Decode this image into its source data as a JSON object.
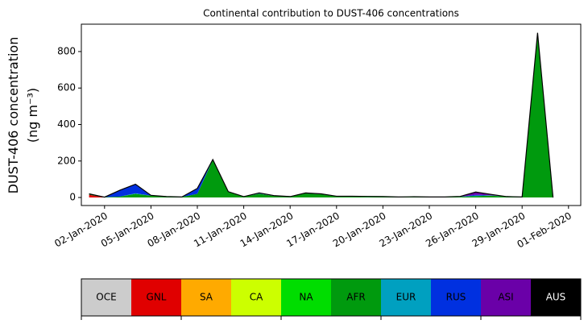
{
  "chart_data": {
    "type": "stacked-area",
    "title": "Continental contribution to DUST-406 concentrations",
    "y_label": "DUST-406 concentration",
    "y_label_units": "(ng m⁻³)",
    "x": [
      "2020-01-01",
      "2020-01-02",
      "2020-01-03",
      "2020-01-04",
      "2020-01-05",
      "2020-01-06",
      "2020-01-07",
      "2020-01-08",
      "2020-01-09",
      "2020-01-10",
      "2020-01-11",
      "2020-01-12",
      "2020-01-13",
      "2020-01-14",
      "2020-01-15",
      "2020-01-16",
      "2020-01-17",
      "2020-01-18",
      "2020-01-19",
      "2020-01-20",
      "2020-01-21",
      "2020-01-22",
      "2020-01-23",
      "2020-01-24",
      "2020-01-25",
      "2020-01-26",
      "2020-01-27",
      "2020-01-28",
      "2020-01-29",
      "2020-01-30",
      "2020-01-31"
    ],
    "series": [
      {
        "name": "OCE",
        "color": "#cccccc",
        "values": [
          0,
          0,
          0,
          0,
          0,
          0,
          0,
          0,
          0,
          0,
          0,
          0,
          0,
          0,
          0,
          0,
          0,
          0,
          0,
          0,
          0,
          0,
          0,
          0,
          0,
          0,
          0,
          0,
          0,
          0,
          0
        ]
      },
      {
        "name": "GNL",
        "color": "#e00000",
        "values": [
          15,
          0,
          0,
          0,
          0,
          0,
          0,
          0,
          0,
          0,
          0,
          0,
          0,
          0,
          0,
          0,
          0,
          0,
          0,
          0,
          0,
          0,
          0,
          0,
          0,
          0,
          0,
          0,
          0,
          0,
          0
        ]
      },
      {
        "name": "SA",
        "color": "#ffaa00",
        "values": [
          0,
          0,
          0,
          0,
          0,
          0,
          0,
          0,
          0,
          0,
          0,
          0,
          0,
          0,
          0,
          0,
          0,
          0,
          0,
          0,
          0,
          0,
          0,
          0,
          0,
          0,
          0,
          0,
          0,
          0,
          0
        ]
      },
      {
        "name": "CA",
        "color": "#ccff00",
        "values": [
          0,
          0,
          0,
          0,
          0,
          0,
          0,
          0,
          0,
          0,
          0,
          0,
          0,
          0,
          0,
          0,
          0,
          0,
          0,
          0,
          0,
          0,
          0,
          0,
          0,
          0,
          0,
          0,
          0,
          0,
          0
        ]
      },
      {
        "name": "NA",
        "color": "#00dd00",
        "values": [
          0,
          0,
          0,
          0,
          0,
          0,
          0,
          0,
          0,
          0,
          0,
          0,
          0,
          0,
          0,
          0,
          0,
          0,
          0,
          0,
          0,
          0,
          0,
          0,
          0,
          0,
          0,
          0,
          0,
          0,
          0
        ]
      },
      {
        "name": "AFR",
        "color": "#009a0e",
        "values": [
          5,
          2,
          5,
          20,
          10,
          5,
          3,
          20,
          205,
          30,
          5,
          20,
          8,
          5,
          22,
          18,
          5,
          5,
          4,
          5,
          3,
          4,
          3,
          3,
          4,
          8,
          10,
          5,
          3,
          900,
          0
        ]
      },
      {
        "name": "EUR",
        "color": "#00a0c0",
        "values": [
          0,
          0,
          0,
          3,
          0,
          0,
          0,
          0,
          3,
          2,
          0,
          2,
          0,
          0,
          0,
          0,
          2,
          2,
          2,
          0,
          0,
          0,
          0,
          0,
          0,
          2,
          2,
          0,
          0,
          3,
          0
        ]
      },
      {
        "name": "RUS",
        "color": "#0030e0",
        "values": [
          0,
          0,
          35,
          50,
          2,
          0,
          0,
          30,
          0,
          0,
          0,
          0,
          0,
          0,
          0,
          0,
          0,
          0,
          0,
          0,
          0,
          0,
          0,
          0,
          0,
          5,
          0,
          0,
          0,
          0,
          0
        ]
      },
      {
        "name": "ASI",
        "color": "#6a00a8",
        "values": [
          0,
          0,
          0,
          0,
          0,
          0,
          0,
          0,
          0,
          0,
          0,
          3,
          2,
          0,
          3,
          2,
          0,
          0,
          0,
          0,
          0,
          0,
          0,
          0,
          2,
          15,
          5,
          0,
          0,
          0,
          0
        ]
      },
      {
        "name": "AUS",
        "color": "#000000",
        "values": [
          0,
          0,
          0,
          0,
          0,
          0,
          0,
          0,
          0,
          0,
          0,
          0,
          0,
          0,
          0,
          0,
          0,
          0,
          0,
          0,
          0,
          0,
          0,
          0,
          0,
          0,
          0,
          0,
          0,
          0,
          0
        ]
      }
    ],
    "xlim": [
      "2019-12-31T12:00",
      "2020-02-01T19:00"
    ],
    "xticks": [
      {
        "value": "2020-01-02",
        "label": "02-Jan-2020"
      },
      {
        "value": "2020-01-05",
        "label": "05-Jan-2020"
      },
      {
        "value": "2020-01-08",
        "label": "08-Jan-2020"
      },
      {
        "value": "2020-01-11",
        "label": "11-Jan-2020"
      },
      {
        "value": "2020-01-14",
        "label": "14-Jan-2020"
      },
      {
        "value": "2020-01-17",
        "label": "17-Jan-2020"
      },
      {
        "value": "2020-01-20",
        "label": "20-Jan-2020"
      },
      {
        "value": "2020-01-23",
        "label": "23-Jan-2020"
      },
      {
        "value": "2020-01-26",
        "label": "26-Jan-2020"
      },
      {
        "value": "2020-01-29",
        "label": "29-Jan-2020"
      },
      {
        "value": "2020-02-01",
        "label": "01-Feb-2020"
      }
    ],
    "ylim": [
      -44,
      950
    ],
    "yticks": [
      0,
      200,
      400,
      600,
      800
    ]
  }
}
